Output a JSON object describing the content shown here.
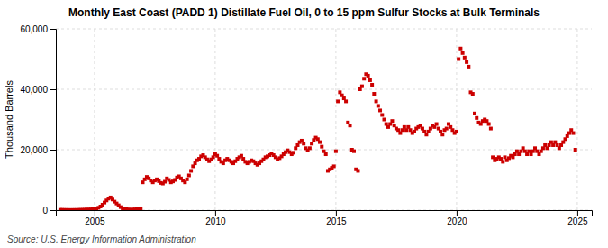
{
  "chart_data": {
    "type": "scatter",
    "title": "Monthly East Coast (PADD 1) Distillate Fuel Oil, 0 to 15 ppm Sulfur Stocks at Bulk Terminals",
    "ylabel": "Thousand Barrels",
    "annotations": [
      "Source: U.S. Energy Information Administration"
    ],
    "color": "#cc0000",
    "marker": "square",
    "grid": true,
    "xlim": [
      2003.4,
      2025.6
    ],
    "xticks": [
      2005,
      2010,
      2015,
      2020,
      2025
    ],
    "ylim": [
      0,
      60000
    ],
    "yticks": [
      0,
      {
        "value": 20000,
        "label": "20,000"
      },
      {
        "value": 40000,
        "label": "40,000"
      },
      {
        "value": 60000,
        "label": "60,000"
      }
    ],
    "x": [
      2003.583,
      2003.667,
      2003.75,
      2003.833,
      2003.917,
      2004.0,
      2004.083,
      2004.167,
      2004.25,
      2004.333,
      2004.417,
      2004.5,
      2004.583,
      2004.667,
      2004.75,
      2004.833,
      2004.917,
      2005.0,
      2005.083,
      2005.167,
      2005.25,
      2005.333,
      2005.417,
      2005.5,
      2005.583,
      2005.667,
      2005.75,
      2005.833,
      2005.917,
      2006.0,
      2006.083,
      2006.167,
      2006.25,
      2006.333,
      2006.417,
      2006.5,
      2006.583,
      2006.667,
      2006.75,
      2006.833,
      2006.917,
      2007.0,
      2007.083,
      2007.167,
      2007.25,
      2007.333,
      2007.417,
      2007.5,
      2007.583,
      2007.667,
      2007.75,
      2007.833,
      2007.917,
      2008.0,
      2008.083,
      2008.167,
      2008.25,
      2008.333,
      2008.417,
      2008.5,
      2008.583,
      2008.667,
      2008.75,
      2008.833,
      2008.917,
      2009.0,
      2009.083,
      2009.167,
      2009.25,
      2009.333,
      2009.417,
      2009.5,
      2009.583,
      2009.667,
      2009.75,
      2009.833,
      2009.917,
      2010.0,
      2010.083,
      2010.167,
      2010.25,
      2010.333,
      2010.417,
      2010.5,
      2010.583,
      2010.667,
      2010.75,
      2010.833,
      2010.917,
      2011.0,
      2011.083,
      2011.167,
      2011.25,
      2011.333,
      2011.417,
      2011.5,
      2011.583,
      2011.667,
      2011.75,
      2011.833,
      2011.917,
      2012.0,
      2012.083,
      2012.167,
      2012.25,
      2012.333,
      2012.417,
      2012.5,
      2012.583,
      2012.667,
      2012.75,
      2012.833,
      2012.917,
      2013.0,
      2013.083,
      2013.167,
      2013.25,
      2013.333,
      2013.417,
      2013.5,
      2013.583,
      2013.667,
      2013.75,
      2013.833,
      2013.917,
      2014.0,
      2014.083,
      2014.167,
      2014.25,
      2014.333,
      2014.417,
      2014.5,
      2014.583,
      2014.667,
      2014.75,
      2014.833,
      2014.917,
      2015.0,
      2015.083,
      2015.167,
      2015.25,
      2015.333,
      2015.417,
      2015.5,
      2015.583,
      2015.667,
      2015.75,
      2015.833,
      2015.917,
      2016.0,
      2016.083,
      2016.167,
      2016.25,
      2016.333,
      2016.417,
      2016.5,
      2016.583,
      2016.667,
      2016.75,
      2016.833,
      2016.917,
      2017.0,
      2017.083,
      2017.167,
      2017.25,
      2017.333,
      2017.417,
      2017.5,
      2017.583,
      2017.667,
      2017.75,
      2017.833,
      2017.917,
      2018.0,
      2018.083,
      2018.167,
      2018.25,
      2018.333,
      2018.417,
      2018.5,
      2018.583,
      2018.667,
      2018.75,
      2018.833,
      2018.917,
      2019.0,
      2019.083,
      2019.167,
      2019.25,
      2019.333,
      2019.417,
      2019.5,
      2019.583,
      2019.667,
      2019.75,
      2019.833,
      2019.917,
      2020.0,
      2020.083,
      2020.167,
      2020.25,
      2020.333,
      2020.417,
      2020.5,
      2020.583,
      2020.667,
      2020.75,
      2020.833,
      2020.917,
      2021.0,
      2021.083,
      2021.167,
      2021.25,
      2021.333,
      2021.417,
      2021.5,
      2021.583,
      2021.667,
      2021.75,
      2021.833,
      2021.917,
      2022.0,
      2022.083,
      2022.167,
      2022.25,
      2022.333,
      2022.417,
      2022.5,
      2022.583,
      2022.667,
      2022.75,
      2022.833,
      2022.917,
      2023.0,
      2023.083,
      2023.167,
      2023.25,
      2023.333,
      2023.417,
      2023.5,
      2023.583,
      2023.667,
      2023.75,
      2023.833,
      2023.917,
      2024.0,
      2024.083,
      2024.167,
      2024.25,
      2024.333,
      2024.417,
      2024.5,
      2024.583,
      2024.667,
      2024.75,
      2024.833,
      2024.917
    ],
    "values": [
      100,
      80,
      60,
      50,
      40,
      30,
      40,
      50,
      60,
      80,
      100,
      120,
      150,
      180,
      200,
      250,
      300,
      400,
      600,
      800,
      1200,
      1800,
      2500,
      3200,
      3800,
      4200,
      3500,
      2800,
      2200,
      1600,
      1000,
      600,
      400,
      300,
      200,
      150,
      200,
      250,
      300,
      400,
      600,
      9200,
      10200,
      11000,
      10500,
      9800,
      9200,
      9800,
      10200,
      9600,
      9000,
      8800,
      9400,
      10500,
      10000,
      9200,
      9500,
      10000,
      10800,
      11200,
      10500,
      9800,
      9200,
      10200,
      11500,
      13000,
      14500,
      15500,
      16500,
      17000,
      17800,
      18200,
      17500,
      16800,
      16200,
      16800,
      17500,
      18500,
      18000,
      17000,
      16000,
      15500,
      16500,
      17000,
      16500,
      16000,
      15500,
      16200,
      17000,
      17500,
      18000,
      17000,
      16000,
      15500,
      16000,
      16500,
      16200,
      15500,
      15000,
      15500,
      16200,
      16800,
      17500,
      17800,
      18200,
      18800,
      18200,
      17500,
      16800,
      17200,
      17800,
      18500,
      19200,
      19800,
      19200,
      18500,
      19000,
      20500,
      21500,
      22500,
      23000,
      22000,
      20500,
      19800,
      20500,
      22000,
      23200,
      24000,
      23500,
      22500,
      21000,
      19500,
      18500,
      13000,
      13500,
      14000,
      14500,
      19500,
      36000,
      39000,
      38000,
      37000,
      36000,
      29000,
      28000,
      20000,
      19500,
      13500,
      13000,
      40000,
      41000,
      43500,
      45000,
      44500,
      43000,
      41500,
      38500,
      36000,
      34500,
      33000,
      31500,
      30000,
      28500,
      27500,
      28500,
      29500,
      28000,
      27000,
      26500,
      25500,
      26500,
      27500,
      26500,
      27500,
      26500,
      25500,
      26000,
      27000,
      27500,
      28000,
      27000,
      26000,
      25000,
      26000,
      27000,
      28000,
      27500,
      28500,
      27000,
      26000,
      25000,
      26500,
      27000,
      28500,
      27500,
      26500,
      25500,
      26000,
      50000,
      53500,
      52000,
      50500,
      49000,
      47500,
      39000,
      38500,
      32000,
      30500,
      29000,
      28500,
      29500,
      30000,
      29500,
      28500,
      27000,
      17500,
      16500,
      17000,
      17500,
      17000,
      16000,
      17500,
      16500,
      17200,
      18000,
      17500,
      18500,
      19500,
      18500,
      19500,
      20500,
      19500,
      18500,
      19500,
      18500,
      19500,
      20500,
      19500,
      18500,
      19500,
      20500,
      21500,
      20500,
      21500,
      22500,
      21500,
      22500,
      21500,
      20500,
      21500,
      22500,
      23500,
      24500,
      25500,
      26500,
      25500,
      20000
    ]
  }
}
